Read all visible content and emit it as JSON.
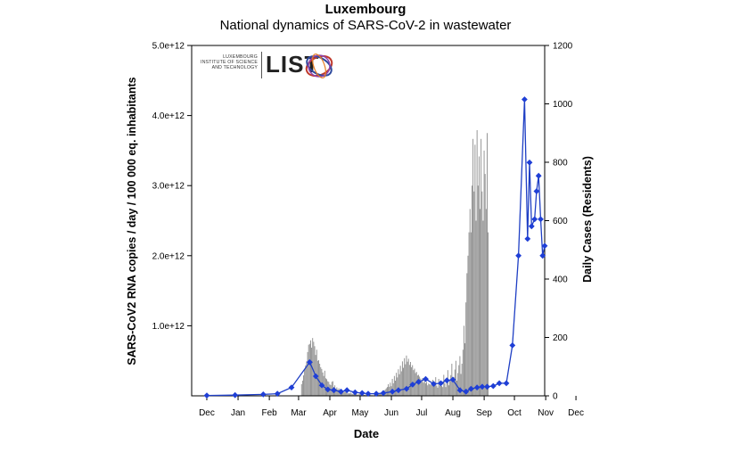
{
  "header": {
    "title": "Luxembourg",
    "subtitle": "National dynamics of SARS-CoV-2 in wastewater"
  },
  "logo": {
    "small_line1": "LUXEMBOURG",
    "small_line2": "INSTITUTE OF SCIENCE",
    "small_line3": "AND TECHNOLOGY",
    "wordmark": "LIST"
  },
  "colors": {
    "bars": "#8c8c8c",
    "line": "#1f3fc4",
    "markers": "#1f3fd6"
  },
  "chart_data": {
    "type": "bar+line",
    "xlabel": "Date",
    "ylabel_left": "SARS-CoV2 RNA copies / day  / 100 000 eq. inhabitants",
    "ylabel_right": "Daily Cases (Residents)",
    "x_range_days": [
      -15,
      335
    ],
    "x_ticks": [
      {
        "label": "Dec",
        "day": 0
      },
      {
        "label": "Jan",
        "day": 31
      },
      {
        "label": "Feb",
        "day": 62
      },
      {
        "label": "Mar",
        "day": 91
      },
      {
        "label": "Apr",
        "day": 122
      },
      {
        "label": "May",
        "day": 152
      },
      {
        "label": "Jun",
        "day": 183
      },
      {
        "label": "Jul",
        "day": 213
      },
      {
        "label": "Aug",
        "day": 244
      },
      {
        "label": "Sep",
        "day": 275
      },
      {
        "label": "Oct",
        "day": 305
      },
      {
        "label": "Nov",
        "day": 336
      },
      {
        "label": "Dec",
        "day": 366
      }
    ],
    "y_left": {
      "min": 0,
      "max": 5000000000000,
      "ticks": [
        {
          "value": 1000000000000,
          "label": "1.0e+12"
        },
        {
          "value": 2000000000000,
          "label": "2.0e+12"
        },
        {
          "value": 3000000000000,
          "label": "3.0e+12"
        },
        {
          "value": 4000000000000,
          "label": "4.0e+12"
        },
        {
          "value": 5000000000000,
          "label": "5.0e+12"
        }
      ]
    },
    "y_right": {
      "min": 0,
      "max": 1200,
      "ticks": [
        {
          "value": 0,
          "label": "0"
        },
        {
          "value": 200,
          "label": "200"
        },
        {
          "value": 400,
          "label": "400"
        },
        {
          "value": 600,
          "label": "600"
        },
        {
          "value": 800,
          "label": "800"
        },
        {
          "value": 1000,
          "label": "1000"
        },
        {
          "value": 1200,
          "label": "1200"
        }
      ]
    },
    "series": [
      {
        "name": "Daily Cases (Residents)",
        "type": "bar",
        "axis": "right",
        "day_start": 94,
        "values": [
          40,
          52,
          70,
          88,
          104,
          118,
          150,
          175,
          178,
          190,
          165,
          198,
          185,
          170,
          140,
          158,
          120,
          122,
          110,
          98,
          92,
          80,
          68,
          86,
          60,
          57,
          50,
          48,
          39,
          37,
          48,
          50,
          30,
          36,
          25,
          29,
          21,
          26,
          17,
          22,
          16,
          14,
          12,
          15,
          12,
          10,
          8,
          9,
          8,
          11,
          7,
          6,
          7,
          8,
          6,
          5,
          4,
          7,
          6,
          5,
          3,
          4,
          3,
          4,
          2,
          3,
          2,
          2,
          3,
          2,
          2,
          1,
          2,
          3,
          4,
          4,
          5,
          6,
          8,
          10,
          12,
          15,
          18,
          22,
          26,
          30,
          40,
          31,
          45,
          33,
          58,
          43,
          68,
          52,
          79,
          63,
          91,
          74,
          103,
          84,
          118,
          96,
          129,
          108,
          138,
          117,
          127,
          106,
          116,
          98,
          105,
          88,
          93,
          78,
          82,
          70,
          72,
          66,
          59,
          48,
          61,
          45,
          52,
          43,
          48,
          36,
          42,
          40,
          38,
          37,
          55,
          35,
          36,
          64,
          35,
          28,
          58,
          35,
          50,
          34,
          30,
          72,
          43,
          30,
          48,
          88,
          36,
          52,
          71,
          110,
          46,
          64,
          90,
          120,
          52,
          78,
          105,
          136,
          75,
          110,
          158,
          240,
          180,
          320,
          420,
          480,
          560,
          640,
          560,
          720,
          880,
          700,
          860,
          600,
          910,
          720,
          820,
          640,
          880,
          700,
          600,
          840,
          760,
          640,
          900,
          560
        ]
      },
      {
        "name": "SARS-CoV2 RNA copies / day / 100 000 eq. inhabitants",
        "type": "line",
        "axis": "left",
        "points": [
          {
            "day": 0,
            "value": 5000000000
          },
          {
            "day": 28,
            "value": 10000000000
          },
          {
            "day": 56,
            "value": 20000000000
          },
          {
            "day": 70,
            "value": 30000000000
          },
          {
            "day": 84,
            "value": 120000000000
          },
          {
            "day": 102,
            "value": 480000000000
          },
          {
            "day": 108,
            "value": 280000000000
          },
          {
            "day": 114,
            "value": 150000000000
          },
          {
            "day": 120,
            "value": 90000000000
          },
          {
            "day": 126,
            "value": 80000000000
          },
          {
            "day": 133,
            "value": 60000000000
          },
          {
            "day": 139,
            "value": 80000000000
          },
          {
            "day": 147,
            "value": 50000000000
          },
          {
            "day": 154,
            "value": 40000000000
          },
          {
            "day": 160,
            "value": 30000000000
          },
          {
            "day": 168,
            "value": 30000000000
          },
          {
            "day": 175,
            "value": 40000000000
          },
          {
            "day": 184,
            "value": 60000000000
          },
          {
            "day": 190,
            "value": 80000000000
          },
          {
            "day": 198,
            "value": 100000000000
          },
          {
            "day": 204,
            "value": 160000000000
          },
          {
            "day": 210,
            "value": 200000000000
          },
          {
            "day": 217,
            "value": 240000000000
          },
          {
            "day": 225,
            "value": 170000000000
          },
          {
            "day": 232,
            "value": 180000000000
          },
          {
            "day": 238,
            "value": 220000000000
          },
          {
            "day": 244,
            "value": 230000000000
          },
          {
            "day": 251,
            "value": 80000000000
          },
          {
            "day": 257,
            "value": 60000000000
          },
          {
            "day": 262,
            "value": 100000000000
          },
          {
            "day": 268,
            "value": 120000000000
          },
          {
            "day": 273,
            "value": 130000000000
          },
          {
            "day": 278,
            "value": 130000000000
          },
          {
            "day": 284,
            "value": 140000000000
          },
          {
            "day": 290,
            "value": 180000000000
          },
          {
            "day": 297,
            "value": 180000000000
          },
          {
            "day": 303,
            "value": 720000000000
          },
          {
            "day": 309,
            "value": 2000000000000
          },
          {
            "day": 315,
            "value": 4230000000000
          },
          {
            "day": 318,
            "value": 2240000000000
          },
          {
            "day": 320,
            "value": 3330000000000
          },
          {
            "day": 322,
            "value": 2420000000000
          },
          {
            "day": 325,
            "value": 2520000000000
          },
          {
            "day": 327,
            "value": 2920000000000
          },
          {
            "day": 329,
            "value": 3140000000000
          },
          {
            "day": 331,
            "value": 2520000000000
          },
          {
            "day": 333,
            "value": 2000000000000
          },
          {
            "day": 335,
            "value": 2140000000000
          }
        ]
      }
    ]
  }
}
